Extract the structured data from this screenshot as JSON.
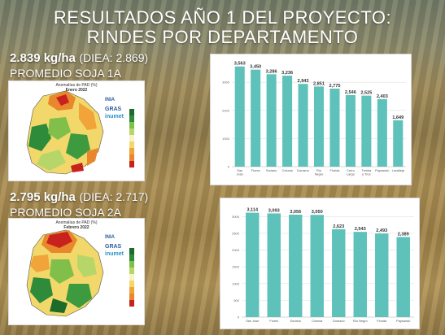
{
  "title_line1": "RESULTADOS AÑO 1 DEL PROYECTO:",
  "title_line2": "RINDES POR DEPARTAMENTO",
  "block1": {
    "yield": "2.839 kg/ha",
    "diea": "(DIEA: 2.869)",
    "label": "PROMEDIO SOJA 1A"
  },
  "block2": {
    "yield": "2.795 kg/ha",
    "diea": "(DIEA: 2.717)",
    "label": "PROMEDIO SOJA 2A"
  },
  "map1": {
    "title": "Anomalías de PAD (%)",
    "date": "Enero 2022",
    "logo1": "INIA",
    "logo2": "GRAS",
    "logo3": "inumet"
  },
  "map2": {
    "title": "Anomalías de PAD (%)",
    "date": "Febrero 2022",
    "logo1": "INIA",
    "logo2": "GRAS",
    "logo3": "inumet"
  },
  "colors": {
    "bar": "#5ec2bb"
  },
  "chart_data": [
    {
      "type": "bar",
      "categories": [
        "San José",
        "Flores",
        "Soriano",
        "Colonia",
        "Durazno",
        "Río Negro",
        "Florida",
        "Cerro Largo",
        "Treinta y Tres",
        "Paysandú",
        "Lavalleja"
      ],
      "values": [
        3563,
        3450,
        3286,
        3236,
        2943,
        2851,
        2775,
        2546,
        2525,
        2403,
        1649
      ],
      "data_labels": [
        "3,563",
        "3,450",
        "3,286",
        "3,236",
        "2,943",
        "2,851",
        "2,775",
        "2,546",
        "2,525",
        "2,403",
        "1,649"
      ],
      "yticks": [
        "0",
        "1000",
        "2000",
        "3000"
      ],
      "ylim": [
        0,
        3700
      ],
      "grid": true
    },
    {
      "type": "bar",
      "categories": [
        "San José",
        "Flores",
        "Soriano",
        "Colonia",
        "Durazno",
        "Río Negro",
        "Florida",
        "Paysandú"
      ],
      "values": [
        3114,
        3093,
        3056,
        3050,
        2623,
        2543,
        2493,
        2389
      ],
      "data_labels": [
        "3,114",
        "3,093",
        "3,056",
        "3,050",
        "2,623",
        "2,543",
        "2,493",
        "2,389"
      ],
      "yticks": [
        "0",
        "500",
        "1000",
        "1500",
        "2000",
        "2500",
        "3000"
      ],
      "ylim": [
        0,
        3250
      ],
      "grid": true
    }
  ]
}
